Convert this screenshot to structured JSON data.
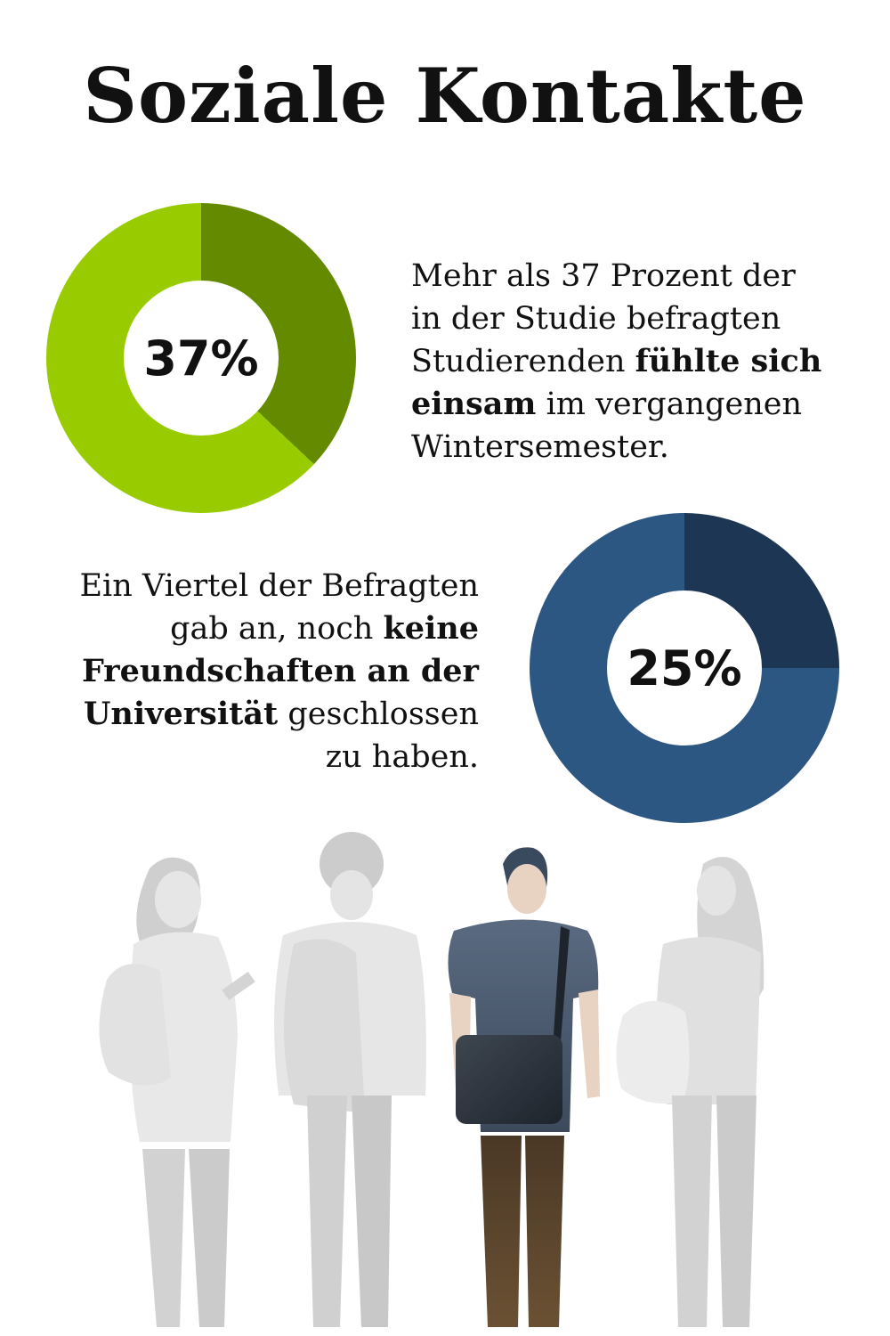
{
  "title": "Soziale Kontakte",
  "colors": {
    "green_light": "#99cc00",
    "green_dark": "#648a00",
    "blue_light": "#2d5783",
    "blue_dark": "#1c3653"
  },
  "chart_data": [
    {
      "type": "pie",
      "label": "37%",
      "slices": [
        {
          "value": 37,
          "color": "#648a00"
        },
        {
          "value": 63,
          "color": "#99cc00"
        }
      ]
    },
    {
      "type": "pie",
      "label": "25%",
      "slices": [
        {
          "value": 25,
          "color": "#1c3653"
        },
        {
          "value": 75,
          "color": "#2d5783"
        }
      ]
    }
  ],
  "text1": {
    "line1": "Mehr als 37 Prozent der",
    "line2": "in der Studie befragten",
    "line3_a": "Studierenden ",
    "line3_b": "fühlte sich",
    "line4_a": "einsam",
    "line4_b": " im vergangenen",
    "line5": "Wintersemester."
  },
  "text2": {
    "line1": "Ein Viertel der Befragten",
    "line2_a": "gab an, noch ",
    "line2_b": "keine",
    "line3": "Freundschaften an der",
    "line4_a": "Universität",
    "line4_b": " geschlossen",
    "line5": "zu haben."
  },
  "illustration": {
    "figures": [
      "student-left",
      "student-curly",
      "student-highlighted",
      "student-right"
    ]
  }
}
